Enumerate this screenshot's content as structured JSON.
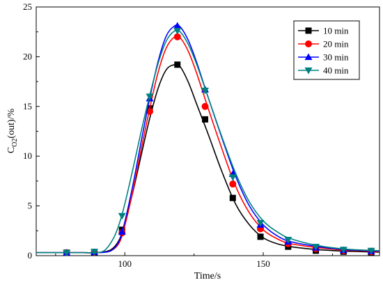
{
  "chart_data": {
    "type": "line",
    "title": "",
    "xlabel": "Time/s",
    "ylabel_main": "C",
    "ylabel_sub": "O2",
    "ylabel_tail": "(out)/%",
    "xlim": [
      68,
      192
    ],
    "ylim": [
      0,
      25
    ],
    "x_ticks": [
      100,
      150
    ],
    "y_ticks": [
      0,
      5,
      10,
      15,
      20,
      25
    ],
    "grid": false,
    "legend_position": "top-right",
    "series": [
      {
        "name": "10 min",
        "color": "#000000",
        "marker": "square",
        "curve": [
          [
            68,
            0.3
          ],
          [
            85,
            0.3
          ],
          [
            90,
            0.3
          ],
          [
            95,
            0.6
          ],
          [
            98,
            1.6
          ],
          [
            100,
            3.3
          ],
          [
            103,
            6.5
          ],
          [
            106,
            10.2
          ],
          [
            109,
            13.8
          ],
          [
            112,
            16.8
          ],
          [
            115,
            18.7
          ],
          [
            118,
            19.2
          ],
          [
            120,
            19.0
          ],
          [
            123,
            17.4
          ],
          [
            126,
            15.2
          ],
          [
            130,
            12.3
          ],
          [
            135,
            8.5
          ],
          [
            140,
            5.2
          ],
          [
            145,
            3.1
          ],
          [
            150,
            1.8
          ],
          [
            155,
            1.2
          ],
          [
            160,
            0.9
          ],
          [
            170,
            0.6
          ],
          [
            180,
            0.45
          ],
          [
            192,
            0.35
          ]
        ],
        "markers": [
          [
            79,
            0.3
          ],
          [
            89,
            0.35
          ],
          [
            99,
            2.6
          ],
          [
            109,
            14.8
          ],
          [
            119,
            19.2
          ],
          [
            129,
            13.7
          ],
          [
            139,
            5.8
          ],
          [
            149,
            1.9
          ],
          [
            159,
            0.9
          ],
          [
            169,
            0.5
          ],
          [
            179,
            0.4
          ],
          [
            189,
            0.35
          ]
        ]
      },
      {
        "name": "20 min",
        "color": "#ff0000",
        "marker": "circle",
        "curve": [
          [
            68,
            0.3
          ],
          [
            85,
            0.3
          ],
          [
            90,
            0.3
          ],
          [
            95,
            0.5
          ],
          [
            98,
            1.3
          ],
          [
            100,
            3.0
          ],
          [
            103,
            6.6
          ],
          [
            106,
            10.8
          ],
          [
            109,
            14.8
          ],
          [
            112,
            18.4
          ],
          [
            115,
            20.9
          ],
          [
            118,
            22.0
          ],
          [
            120,
            21.9
          ],
          [
            123,
            20.5
          ],
          [
            126,
            18.3
          ],
          [
            130,
            14.9
          ],
          [
            135,
            10.8
          ],
          [
            140,
            7.0
          ],
          [
            145,
            4.3
          ],
          [
            150,
            2.6
          ],
          [
            155,
            1.7
          ],
          [
            160,
            1.2
          ],
          [
            170,
            0.8
          ],
          [
            180,
            0.55
          ],
          [
            192,
            0.4
          ]
        ],
        "markers": [
          [
            79,
            0.3
          ],
          [
            89,
            0.35
          ],
          [
            99,
            2.3
          ],
          [
            109,
            14.5
          ],
          [
            119,
            22.0
          ],
          [
            129,
            15.0
          ],
          [
            139,
            7.2
          ],
          [
            149,
            2.7
          ],
          [
            159,
            1.2
          ],
          [
            169,
            0.7
          ],
          [
            179,
            0.5
          ],
          [
            189,
            0.4
          ]
        ]
      },
      {
        "name": "30 min",
        "color": "#0000ff",
        "marker": "triangle-up",
        "curve": [
          [
            68,
            0.3
          ],
          [
            85,
            0.3
          ],
          [
            90,
            0.3
          ],
          [
            95,
            0.5
          ],
          [
            98,
            1.5
          ],
          [
            100,
            3.4
          ],
          [
            103,
            7.2
          ],
          [
            106,
            11.6
          ],
          [
            109,
            15.8
          ],
          [
            112,
            19.5
          ],
          [
            115,
            22.1
          ],
          [
            118,
            23.1
          ],
          [
            120,
            23.0
          ],
          [
            123,
            21.6
          ],
          [
            126,
            19.4
          ],
          [
            130,
            16.0
          ],
          [
            135,
            11.9
          ],
          [
            140,
            8.0
          ],
          [
            145,
            5.0
          ],
          [
            150,
            3.1
          ],
          [
            155,
            2.0
          ],
          [
            160,
            1.4
          ],
          [
            170,
            0.9
          ],
          [
            180,
            0.6
          ],
          [
            192,
            0.45
          ]
        ],
        "markers": [
          [
            79,
            0.3
          ],
          [
            89,
            0.35
          ],
          [
            99,
            2.4
          ],
          [
            109,
            15.8
          ],
          [
            119,
            23.1
          ],
          [
            129,
            16.7
          ],
          [
            139,
            8.2
          ],
          [
            149,
            3.1
          ],
          [
            159,
            1.4
          ],
          [
            169,
            0.8
          ],
          [
            179,
            0.55
          ],
          [
            189,
            0.45
          ]
        ]
      },
      {
        "name": "40 min",
        "color": "#008080",
        "marker": "triangle-down",
        "curve": [
          [
            68,
            0.3
          ],
          [
            85,
            0.3
          ],
          [
            90,
            0.3
          ],
          [
            93,
            0.6
          ],
          [
            96,
            1.8
          ],
          [
            98,
            3.2
          ],
          [
            100,
            5.2
          ],
          [
            103,
            8.8
          ],
          [
            106,
            12.6
          ],
          [
            109,
            16.1
          ],
          [
            112,
            19.3
          ],
          [
            115,
            21.6
          ],
          [
            118,
            22.6
          ],
          [
            120,
            22.5
          ],
          [
            123,
            21.2
          ],
          [
            126,
            19.2
          ],
          [
            130,
            16.0
          ],
          [
            135,
            12.0
          ],
          [
            140,
            8.3
          ],
          [
            145,
            5.4
          ],
          [
            150,
            3.5
          ],
          [
            155,
            2.4
          ],
          [
            160,
            1.7
          ],
          [
            170,
            1.0
          ],
          [
            180,
            0.65
          ],
          [
            192,
            0.5
          ]
        ],
        "markers": [
          [
            79,
            0.3
          ],
          [
            89,
            0.4
          ],
          [
            99,
            4.0
          ],
          [
            109,
            16.0
          ],
          [
            119,
            22.6
          ],
          [
            129,
            16.6
          ],
          [
            139,
            7.9
          ],
          [
            149,
            3.3
          ],
          [
            159,
            1.6
          ],
          [
            169,
            0.9
          ],
          [
            179,
            0.6
          ],
          [
            189,
            0.5
          ]
        ]
      }
    ]
  }
}
